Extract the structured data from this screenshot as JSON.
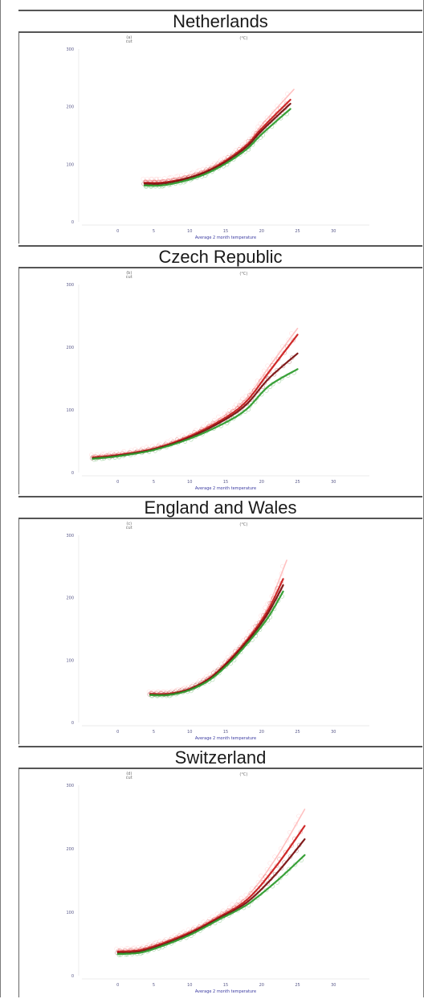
{
  "chart_data": [
    {
      "type": "line",
      "title": "Netherlands",
      "xlabel": "Average 2 month temperature",
      "xlim": [
        -5,
        35
      ],
      "ylim": [
        0,
        300
      ],
      "xticks": [
        0,
        5,
        10,
        15,
        20,
        25,
        30
      ],
      "yticks": [
        0,
        100,
        200,
        300
      ],
      "corner_labels": {
        "left": "(a)",
        "left_sub": "cut",
        "right": "(°C)"
      },
      "series": [
        {
          "color": "#ffb3b3",
          "x": [
            3.7,
            6,
            9,
            12,
            15,
            18,
            20,
            24.5
          ],
          "y": [
            72,
            72,
            78,
            89,
            108,
            136,
            168,
            230
          ]
        },
        {
          "color": "#cc1f1f",
          "x": [
            3.7,
            6,
            9,
            12,
            15,
            18,
            20,
            24
          ],
          "y": [
            68,
            68,
            74,
            86,
            106,
            134,
            162,
            212
          ]
        },
        {
          "color": "#7a1010",
          "x": [
            3.7,
            6,
            9,
            12,
            15,
            18,
            20,
            24
          ],
          "y": [
            66,
            66,
            73,
            85,
            104,
            131,
            158,
            205
          ]
        },
        {
          "color": "#2e9c2e",
          "x": [
            3.7,
            6,
            9,
            12,
            15,
            18,
            20,
            24
          ],
          "y": [
            63,
            63,
            70,
            82,
            101,
            127,
            152,
            196
          ]
        }
      ]
    },
    {
      "type": "line",
      "title": "Czech Republic",
      "xlabel": "Average 2 month temperature",
      "xlim": [
        -5,
        35
      ],
      "ylim": [
        0,
        300
      ],
      "xticks": [
        0,
        5,
        10,
        15,
        20,
        25,
        30
      ],
      "yticks": [
        0,
        100,
        200,
        300
      ],
      "corner_labels": {
        "left": "(b)",
        "left_sub": "cut",
        "right": "(°C)"
      },
      "series": [
        {
          "color": "#ffb3b3",
          "x": [
            -3.5,
            0,
            5,
            10,
            15,
            18,
            21,
            25
          ],
          "y": [
            26,
            30,
            40,
            60,
            92,
            120,
            168,
            230
          ]
        },
        {
          "color": "#cc1f1f",
          "x": [
            -3.5,
            0,
            5,
            10,
            15,
            18,
            21,
            25
          ],
          "y": [
            24,
            28,
            38,
            58,
            88,
            115,
            160,
            220
          ]
        },
        {
          "color": "#7a1010",
          "x": [
            -3.5,
            0,
            5,
            10,
            15,
            18,
            21,
            25
          ],
          "y": [
            23,
            27,
            37,
            56,
            85,
            110,
            150,
            190
          ]
        },
        {
          "color": "#2e9c2e",
          "x": [
            -3.5,
            0,
            5,
            10,
            15,
            18,
            21,
            25
          ],
          "y": [
            22,
            26,
            36,
            54,
            80,
            102,
            138,
            165
          ]
        }
      ]
    },
    {
      "type": "line",
      "title": "England and Wales",
      "xlabel": "Average 2 month temperature",
      "xlim": [
        -5,
        35
      ],
      "ylim": [
        0,
        300
      ],
      "xticks": [
        0,
        5,
        10,
        15,
        20,
        25,
        30
      ],
      "yticks": [
        0,
        100,
        200,
        300
      ],
      "corner_labels": {
        "left": "(c)",
        "left_sub": "cut",
        "right": "(°C)"
      },
      "series": [
        {
          "color": "#ffb3b3",
          "x": [
            4.5,
            7,
            10,
            13,
            16,
            19,
            21,
            23.5
          ],
          "y": [
            47,
            47,
            55,
            75,
            108,
            150,
            188,
            260
          ]
        },
        {
          "color": "#cc1f1f",
          "x": [
            4.5,
            7,
            10,
            13,
            16,
            19,
            21,
            23
          ],
          "y": [
            46,
            46,
            54,
            73,
            106,
            147,
            182,
            230
          ]
        },
        {
          "color": "#7a1010",
          "x": [
            4.5,
            7,
            10,
            13,
            16,
            19,
            21,
            23
          ],
          "y": [
            45,
            45,
            53,
            72,
            104,
            144,
            177,
            220
          ]
        },
        {
          "color": "#2e9c2e",
          "x": [
            4.5,
            7,
            10,
            13,
            16,
            19,
            21,
            23
          ],
          "y": [
            44,
            44,
            52,
            70,
            101,
            140,
            170,
            210
          ]
        }
      ]
    },
    {
      "type": "line",
      "title": "Switzerland",
      "xlabel": "Average 2 month temperature",
      "xlim": [
        -5,
        35
      ],
      "ylim": [
        0,
        300
      ],
      "xticks": [
        0,
        5,
        10,
        15,
        20,
        25,
        30
      ],
      "yticks": [
        0,
        100,
        200,
        300
      ],
      "corner_labels": {
        "left": "(d)",
        "left_sub": "cut",
        "right": "(°C)"
      },
      "series": [
        {
          "color": "#ffb3b3",
          "x": [
            0,
            3,
            6,
            10,
            14,
            18,
            22,
            26
          ],
          "y": [
            40,
            42,
            52,
            70,
            95,
            125,
            185,
            262
          ]
        },
        {
          "color": "#cc1f1f",
          "x": [
            0,
            3,
            6,
            10,
            14,
            18,
            22,
            26
          ],
          "y": [
            38,
            40,
            50,
            68,
            92,
            120,
            172,
            236
          ]
        },
        {
          "color": "#7a1010",
          "x": [
            0,
            3,
            6,
            10,
            14,
            18,
            22,
            26
          ],
          "y": [
            36,
            38,
            48,
            66,
            90,
            116,
            160,
            215
          ]
        },
        {
          "color": "#2e9c2e",
          "x": [
            0,
            3,
            6,
            10,
            14,
            18,
            22,
            26
          ],
          "y": [
            34,
            36,
            46,
            64,
            88,
            112,
            148,
            190
          ]
        }
      ]
    }
  ]
}
